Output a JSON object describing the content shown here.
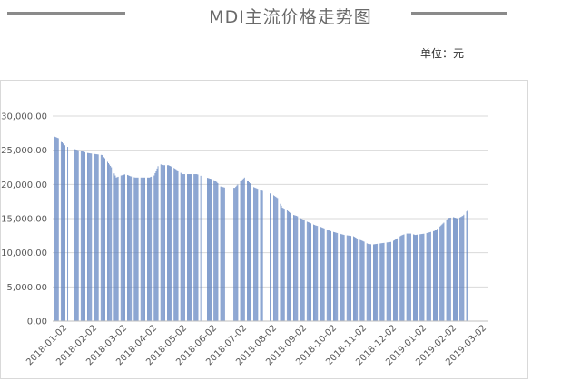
{
  "header": {
    "title": "MDI主流价格走势图",
    "unit": "单位：元"
  },
  "colors": {
    "bar": "#5b7fbe",
    "grid": "#d9d9d9",
    "header_line": "#8a8a8a"
  },
  "chart_data": {
    "type": "bar",
    "title": "MDI主流价格走势图",
    "unit": "单位：元",
    "xlabel": "",
    "ylabel": "",
    "ylim": [
      0,
      30000
    ],
    "y_ticks": [
      "0.00",
      "5,000.00",
      "10,000.00",
      "15,000.00",
      "20,000.00",
      "25,000.00",
      "30,000.00"
    ],
    "x_ticks": [
      "2018-01-02",
      "2018-02-02",
      "2018-03-02",
      "2018-04-02",
      "2018-05-02",
      "2018-06-02",
      "2018-07-02",
      "2018-08-02",
      "2018-09-02",
      "2018-10-02",
      "2018-11-02",
      "2018-12-02",
      "2019-01-02",
      "2019-02-02",
      "2019-03-02"
    ],
    "grid": true,
    "gaps": [
      [
        15,
        20
      ],
      [
        155,
        160
      ],
      [
        180,
        185
      ],
      [
        220,
        226
      ],
      [
        465,
        470
      ]
    ],
    "series": [
      {
        "values": [
          {
            "x": 0,
            "y": 27000
          },
          {
            "x": 5,
            "y": 26700
          },
          {
            "x": 10,
            "y": 25800
          },
          {
            "x": 15,
            "y": 25400
          },
          {
            "x": 20,
            "y": 25200
          },
          {
            "x": 25,
            "y": 25000
          },
          {
            "x": 30,
            "y": 24800
          },
          {
            "x": 35,
            "y": 24600
          },
          {
            "x": 40,
            "y": 24500
          },
          {
            "x": 45,
            "y": 24400
          },
          {
            "x": 50,
            "y": 24300
          },
          {
            "x": 55,
            "y": 23500
          },
          {
            "x": 60,
            "y": 22500
          },
          {
            "x": 65,
            "y": 21000
          },
          {
            "x": 70,
            "y": 21300
          },
          {
            "x": 75,
            "y": 21500
          },
          {
            "x": 80,
            "y": 21200
          },
          {
            "x": 85,
            "y": 21000
          },
          {
            "x": 90,
            "y": 21000
          },
          {
            "x": 95,
            "y": 21000
          },
          {
            "x": 100,
            "y": 21000
          },
          {
            "x": 105,
            "y": 21300
          },
          {
            "x": 110,
            "y": 23000
          },
          {
            "x": 115,
            "y": 22800
          },
          {
            "x": 120,
            "y": 22800
          },
          {
            "x": 125,
            "y": 22500
          },
          {
            "x": 130,
            "y": 22000
          },
          {
            "x": 135,
            "y": 21500
          },
          {
            "x": 140,
            "y": 21500
          },
          {
            "x": 145,
            "y": 21500
          },
          {
            "x": 150,
            "y": 21500
          },
          {
            "x": 155,
            "y": 21200
          },
          {
            "x": 160,
            "y": 21000
          },
          {
            "x": 165,
            "y": 20800
          },
          {
            "x": 170,
            "y": 20500
          },
          {
            "x": 175,
            "y": 19700
          },
          {
            "x": 180,
            "y": 19500
          },
          {
            "x": 185,
            "y": 19500
          },
          {
            "x": 190,
            "y": 19500
          },
          {
            "x": 195,
            "y": 20300
          },
          {
            "x": 200,
            "y": 21000
          },
          {
            "x": 205,
            "y": 20300
          },
          {
            "x": 210,
            "y": 19600
          },
          {
            "x": 215,
            "y": 19300
          },
          {
            "x": 220,
            "y": 19000
          },
          {
            "x": 225,
            "y": 18800
          },
          {
            "x": 230,
            "y": 18500
          },
          {
            "x": 235,
            "y": 18000
          },
          {
            "x": 240,
            "y": 16600
          },
          {
            "x": 245,
            "y": 16200
          },
          {
            "x": 250,
            "y": 15600
          },
          {
            "x": 255,
            "y": 15400
          },
          {
            "x": 260,
            "y": 15000
          },
          {
            "x": 265,
            "y": 14600
          },
          {
            "x": 270,
            "y": 14300
          },
          {
            "x": 275,
            "y": 14000
          },
          {
            "x": 280,
            "y": 13800
          },
          {
            "x": 285,
            "y": 13500
          },
          {
            "x": 290,
            "y": 13200
          },
          {
            "x": 295,
            "y": 13000
          },
          {
            "x": 300,
            "y": 12800
          },
          {
            "x": 305,
            "y": 12600
          },
          {
            "x": 310,
            "y": 12500
          },
          {
            "x": 315,
            "y": 12400
          },
          {
            "x": 320,
            "y": 12000
          },
          {
            "x": 325,
            "y": 11700
          },
          {
            "x": 330,
            "y": 11300
          },
          {
            "x": 335,
            "y": 11200
          },
          {
            "x": 340,
            "y": 11300
          },
          {
            "x": 345,
            "y": 11400
          },
          {
            "x": 350,
            "y": 11500
          },
          {
            "x": 355,
            "y": 11600
          },
          {
            "x": 360,
            "y": 12000
          },
          {
            "x": 365,
            "y": 12500
          },
          {
            "x": 370,
            "y": 12800
          },
          {
            "x": 375,
            "y": 12800
          },
          {
            "x": 380,
            "y": 12600
          },
          {
            "x": 385,
            "y": 12700
          },
          {
            "x": 390,
            "y": 12800
          },
          {
            "x": 395,
            "y": 13000
          },
          {
            "x": 400,
            "y": 13200
          },
          {
            "x": 405,
            "y": 13700
          },
          {
            "x": 410,
            "y": 14400
          },
          {
            "x": 415,
            "y": 15100
          },
          {
            "x": 420,
            "y": 15200
          },
          {
            "x": 425,
            "y": 15000
          },
          {
            "x": 430,
            "y": 15400
          },
          {
            "x": 435,
            "y": 16200
          }
        ]
      }
    ]
  }
}
